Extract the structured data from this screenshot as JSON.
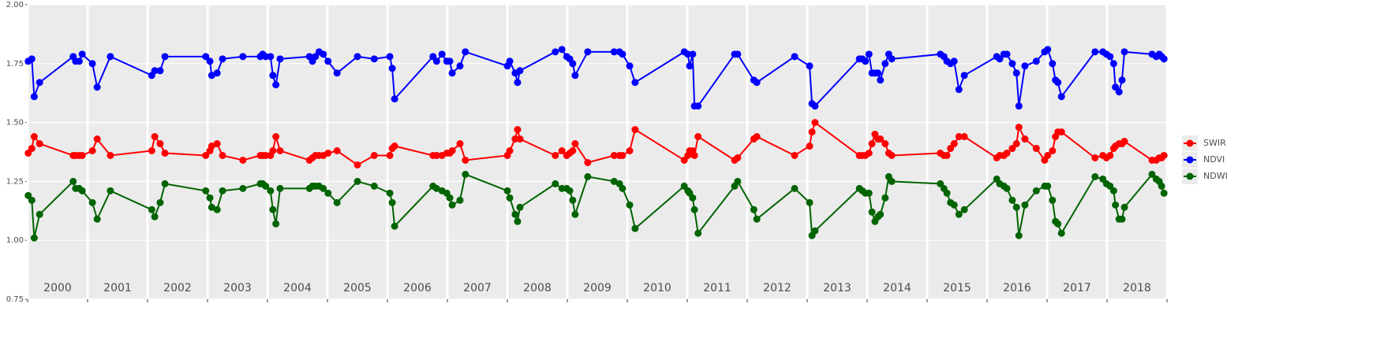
{
  "chart_data": {
    "type": "line",
    "x": [
      2000.01,
      2000.07,
      2000.11,
      2000.2,
      2000.76,
      2000.8,
      2000.86,
      2000.91,
      2001.08,
      2001.16,
      2001.38,
      2002.07,
      2002.12,
      2002.21,
      2002.29,
      2002.97,
      2003.04,
      2003.07,
      2003.16,
      2003.25,
      2003.59,
      2003.88,
      2003.92,
      2003.97,
      2004.05,
      2004.09,
      2004.14,
      2004.21,
      2004.7,
      2004.75,
      2004.8,
      2004.86,
      2004.93,
      2005.01,
      2005.16,
      2005.5,
      2005.78,
      2006.04,
      2006.08,
      2006.12,
      2006.76,
      2006.82,
      2006.91,
      2006.99,
      2007.04,
      2007.08,
      2007.21,
      2007.3,
      2008.0,
      2008.04,
      2008.13,
      2008.17,
      2008.21,
      2008.8,
      2008.91,
      2008.99,
      2009.04,
      2009.09,
      2009.13,
      2009.34,
      2009.78,
      2009.87,
      2009.92,
      2010.04,
      2010.13,
      2010.95,
      2011.01,
      2011.04,
      2011.09,
      2011.12,
      2011.18,
      2011.79,
      2011.84,
      2012.11,
      2012.16,
      2012.79,
      2013.04,
      2013.08,
      2013.13,
      2013.87,
      2013.92,
      2013.97,
      2014.03,
      2014.08,
      2014.13,
      2014.18,
      2014.22,
      2014.3,
      2014.36,
      2014.41,
      2015.22,
      2015.28,
      2015.33,
      2015.39,
      2015.45,
      2015.53,
      2015.62,
      2016.16,
      2016.21,
      2016.28,
      2016.33,
      2016.42,
      2016.49,
      2016.53,
      2016.63,
      2016.82,
      2016.96,
      2017.01,
      2017.09,
      2017.14,
      2017.18,
      2017.24,
      2017.8,
      2017.93,
      2017.99,
      2018.05,
      2018.11,
      2018.14,
      2018.2,
      2018.25,
      2018.29,
      2018.75,
      2018.82,
      2018.87,
      2018.91,
      2018.95
    ],
    "series": [
      {
        "name": "SWIR",
        "color": "#ff0000",
        "values": [
          1.37,
          1.39,
          1.44,
          1.41,
          1.36,
          1.36,
          1.36,
          1.36,
          1.38,
          1.43,
          1.36,
          1.38,
          1.44,
          1.41,
          1.37,
          1.36,
          1.38,
          1.4,
          1.41,
          1.36,
          1.34,
          1.36,
          1.36,
          1.36,
          1.36,
          1.38,
          1.44,
          1.38,
          1.34,
          1.35,
          1.36,
          1.36,
          1.36,
          1.37,
          1.38,
          1.32,
          1.36,
          1.36,
          1.39,
          1.4,
          1.36,
          1.36,
          1.36,
          1.37,
          1.37,
          1.38,
          1.41,
          1.34,
          1.36,
          1.38,
          1.43,
          1.47,
          1.43,
          1.36,
          1.38,
          1.36,
          1.37,
          1.38,
          1.41,
          1.33,
          1.36,
          1.36,
          1.36,
          1.38,
          1.47,
          1.34,
          1.36,
          1.38,
          1.38,
          1.36,
          1.44,
          1.34,
          1.35,
          1.43,
          1.44,
          1.36,
          1.4,
          1.46,
          1.5,
          1.36,
          1.36,
          1.36,
          1.37,
          1.41,
          1.45,
          1.43,
          1.43,
          1.41,
          1.37,
          1.36,
          1.37,
          1.36,
          1.36,
          1.39,
          1.41,
          1.44,
          1.44,
          1.35,
          1.36,
          1.36,
          1.37,
          1.39,
          1.41,
          1.48,
          1.43,
          1.39,
          1.34,
          1.36,
          1.38,
          1.44,
          1.46,
          1.46,
          1.35,
          1.36,
          1.35,
          1.36,
          1.39,
          1.4,
          1.41,
          1.41,
          1.42,
          1.34,
          1.34,
          1.35,
          1.35,
          1.36
        ]
      },
      {
        "name": "NDVI",
        "color": "#0000ff",
        "values": [
          1.76,
          1.77,
          1.61,
          1.67,
          1.78,
          1.76,
          1.76,
          1.79,
          1.75,
          1.65,
          1.78,
          1.7,
          1.72,
          1.72,
          1.78,
          1.78,
          1.76,
          1.7,
          1.71,
          1.77,
          1.78,
          1.78,
          1.79,
          1.78,
          1.78,
          1.7,
          1.66,
          1.77,
          1.78,
          1.76,
          1.78,
          1.8,
          1.79,
          1.76,
          1.71,
          1.78,
          1.77,
          1.78,
          1.73,
          1.6,
          1.78,
          1.76,
          1.79,
          1.76,
          1.76,
          1.71,
          1.74,
          1.8,
          1.74,
          1.76,
          1.71,
          1.67,
          1.72,
          1.8,
          1.81,
          1.78,
          1.77,
          1.75,
          1.7,
          1.8,
          1.8,
          1.8,
          1.79,
          1.74,
          1.67,
          1.8,
          1.79,
          1.74,
          1.79,
          1.57,
          1.57,
          1.79,
          1.79,
          1.68,
          1.67,
          1.78,
          1.74,
          1.58,
          1.57,
          1.77,
          1.77,
          1.76,
          1.79,
          1.71,
          1.71,
          1.71,
          1.68,
          1.75,
          1.79,
          1.77,
          1.79,
          1.78,
          1.76,
          1.75,
          1.76,
          1.64,
          1.7,
          1.78,
          1.77,
          1.79,
          1.79,
          1.75,
          1.71,
          1.57,
          1.74,
          1.76,
          1.8,
          1.81,
          1.75,
          1.68,
          1.67,
          1.61,
          1.8,
          1.8,
          1.79,
          1.78,
          1.75,
          1.65,
          1.63,
          1.68,
          1.8,
          1.79,
          1.78,
          1.79,
          1.78,
          1.77
        ]
      },
      {
        "name": "NDWI",
        "color": "#006400",
        "values": [
          1.19,
          1.17,
          1.01,
          1.11,
          1.25,
          1.22,
          1.22,
          1.21,
          1.16,
          1.09,
          1.21,
          1.13,
          1.1,
          1.16,
          1.24,
          1.21,
          1.18,
          1.14,
          1.13,
          1.21,
          1.22,
          1.24,
          1.24,
          1.23,
          1.21,
          1.13,
          1.07,
          1.22,
          1.22,
          1.23,
          1.23,
          1.23,
          1.22,
          1.2,
          1.16,
          1.25,
          1.23,
          1.2,
          1.16,
          1.06,
          1.23,
          1.22,
          1.21,
          1.2,
          1.18,
          1.15,
          1.17,
          1.28,
          1.21,
          1.18,
          1.11,
          1.08,
          1.14,
          1.24,
          1.22,
          1.22,
          1.21,
          1.17,
          1.11,
          1.27,
          1.25,
          1.24,
          1.22,
          1.15,
          1.05,
          1.23,
          1.21,
          1.2,
          1.18,
          1.13,
          1.03,
          1.23,
          1.25,
          1.13,
          1.09,
          1.22,
          1.16,
          1.02,
          1.04,
          1.22,
          1.21,
          1.2,
          1.2,
          1.12,
          1.08,
          1.1,
          1.11,
          1.18,
          1.27,
          1.25,
          1.24,
          1.22,
          1.2,
          1.16,
          1.15,
          1.11,
          1.13,
          1.26,
          1.24,
          1.23,
          1.22,
          1.17,
          1.14,
          1.02,
          1.15,
          1.21,
          1.23,
          1.23,
          1.17,
          1.08,
          1.07,
          1.03,
          1.27,
          1.26,
          1.24,
          1.23,
          1.21,
          1.15,
          1.09,
          1.09,
          1.14,
          1.28,
          1.26,
          1.25,
          1.23,
          1.2
        ]
      }
    ],
    "year_labels": [
      "2000",
      "2001",
      "2002",
      "2003",
      "2004",
      "2005",
      "2006",
      "2007",
      "2008",
      "2009",
      "2010",
      "2011",
      "2012",
      "2013",
      "2014",
      "2015",
      "2016",
      "2017",
      "2018"
    ],
    "xlim": [
      2000,
      2019
    ],
    "xticks": [
      2000,
      2001,
      2002,
      2003,
      2004,
      2005,
      2006,
      2007,
      2008,
      2009,
      2010,
      2011,
      2012,
      2013,
      2014,
      2015,
      2016,
      2017,
      2018,
      2019
    ],
    "ylim": [
      0.75,
      2
    ],
    "yticks": [
      0.75,
      {
        "value": 1,
        "label": "1.00"
      },
      1.25,
      {
        "value": 1.5,
        "label": "1.50"
      },
      1.75,
      {
        "value": 2,
        "label": "2.00"
      }
    ],
    "grid": true,
    "legend": "right"
  }
}
